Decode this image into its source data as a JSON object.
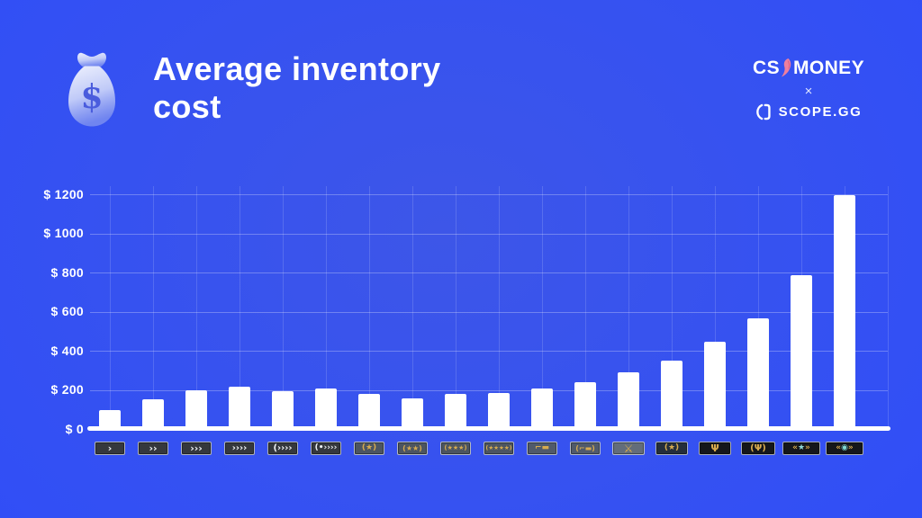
{
  "header": {
    "title_line1": "Average inventory",
    "title_line2": "cost",
    "csmoney_prefix": "CS",
    "csmoney_suffix": "MONEY",
    "collab_separator": "×",
    "scopegg_label": "SCOPE.GG"
  },
  "colors": {
    "background_accent": "#2b49fd",
    "bar": "#ffffff",
    "text": "#ffffff",
    "knife_pink": "#ef7f9e",
    "badge_gold": "#d8ab4f",
    "badge_teal": "#7fd8d2"
  },
  "chart_data": {
    "type": "bar",
    "title": "Average inventory cost",
    "xlabel": "",
    "ylabel": "",
    "ylim": [
      0,
      1200
    ],
    "ytick_step": 200,
    "ytick_labels": [
      "$ 0",
      "$ 200",
      "$ 400",
      "$ 600",
      "$ 800",
      "$ 1000",
      "$ 1200"
    ],
    "grid": true,
    "legend": false,
    "bar_color": "#ffffff",
    "categories": [
      "Silver I",
      "Silver II",
      "Silver III",
      "Silver IV",
      "Silver Elite",
      "Silver Elite Master",
      "Gold Nova I",
      "Gold Nova II",
      "Gold Nova III",
      "Gold Nova Master",
      "Master Guardian I",
      "Master Guardian II",
      "Master Guardian Elite",
      "Distinguished Master Guardian",
      "Legendary Eagle",
      "Legendary Eagle Master",
      "Supreme Master First Class",
      "The Global Elite"
    ],
    "values": [
      100,
      155,
      200,
      220,
      195,
      210,
      180,
      160,
      180,
      185,
      210,
      240,
      290,
      350,
      450,
      570,
      790,
      1200
    ],
    "badges": [
      {
        "rank": "Silver I",
        "glyph": "›",
        "fg": "#eef1f4",
        "bg": "#35383d",
        "sz": 11,
        "w": 34
      },
      {
        "rank": "Silver II",
        "glyph": "››",
        "fg": "#eef1f4",
        "bg": "#35383d",
        "sz": 11,
        "w": 34
      },
      {
        "rank": "Silver III",
        "glyph": "›››",
        "fg": "#eef1f4",
        "bg": "#35383d",
        "sz": 11,
        "w": 34
      },
      {
        "rank": "Silver IV",
        "glyph": "››››",
        "fg": "#eef1f4",
        "bg": "#35383d",
        "sz": 10,
        "w": 34
      },
      {
        "rank": "Silver Elite",
        "glyph": "(››››",
        "fg": "#eef1f4",
        "bg": "#35383d",
        "sz": 10,
        "w": 34
      },
      {
        "rank": "Silver Elite Master",
        "glyph": "(•››››",
        "fg": "#eef1f4",
        "bg": "#35383d",
        "sz": 9,
        "w": 34
      },
      {
        "rank": "Gold Nova I",
        "glyph": "(★)",
        "fg": "#d8ab4f",
        "bg": "#4c5560",
        "sz": 9,
        "w": 34
      },
      {
        "rank": "Gold Nova II",
        "glyph": "(★★)",
        "fg": "#d8ab4f",
        "bg": "#4c5560",
        "sz": 8,
        "w": 34
      },
      {
        "rank": "Gold Nova III",
        "glyph": "(★★★)",
        "fg": "#d8ab4f",
        "bg": "#4c5560",
        "sz": 7,
        "w": 34
      },
      {
        "rank": "Gold Nova Master",
        "glyph": "(★★★★)",
        "fg": "#d8ab4f",
        "bg": "#4c5560",
        "sz": 6.5,
        "w": 34
      },
      {
        "rank": "Master Guardian I",
        "glyph": "⌐▬",
        "fg": "#d8ab4f",
        "bg": "#505a6a",
        "sz": 9,
        "w": 34
      },
      {
        "rank": "Master Guardian II",
        "glyph": "(⌐▬)",
        "fg": "#d8ab4f",
        "bg": "#505a6a",
        "sz": 8,
        "w": 34
      },
      {
        "rank": "Master Guardian Elite",
        "glyph": "⚔",
        "fg": "#d8ab4f",
        "bg": "#636d7a",
        "sz": 12,
        "w": 36
      },
      {
        "rank": "Distinguished Master Guardian",
        "glyph": "(★)",
        "fg": "#d8ab4f",
        "bg": "#242e3b",
        "sz": 9,
        "w": 36
      },
      {
        "rank": "Legendary Eagle",
        "glyph": "Ψ",
        "fg": "#d8ab4f",
        "bg": "#15171b",
        "sz": 11,
        "w": 36
      },
      {
        "rank": "Legendary Eagle Master",
        "glyph": "(Ψ)",
        "fg": "#d8ab4f",
        "bg": "#15171b",
        "sz": 10,
        "w": 38
      },
      {
        "rank": "Supreme Master First Class",
        "glyph": "«★»",
        "fg": "#d8ab4f",
        "bg": "#15171b",
        "sz": 9,
        "w": 42,
        "accent_char": "★",
        "accent": "#8fd8d8"
      },
      {
        "rank": "The Global Elite",
        "glyph": "«◉»",
        "fg": "#d8ab4f",
        "bg": "#15171b",
        "sz": 9,
        "w": 42,
        "accent_char": "◉",
        "accent": "#7fd8d2"
      }
    ]
  }
}
